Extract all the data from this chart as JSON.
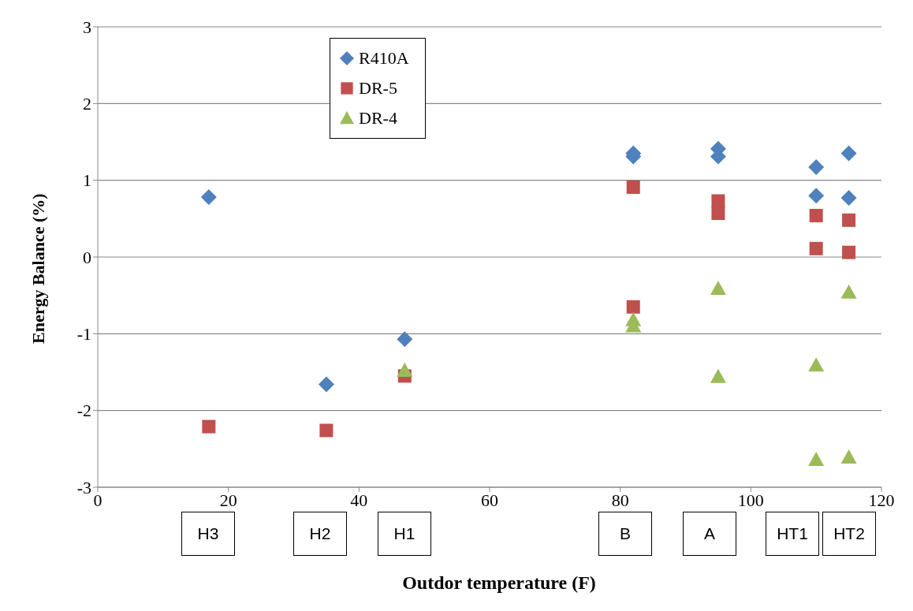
{
  "chart_data": {
    "type": "scatter",
    "xlabel": "Outdor temperature (F)",
    "ylabel": "Energy Balance (%)",
    "xlim": [
      0,
      120
    ],
    "xticks": [
      0,
      20,
      40,
      60,
      80,
      100,
      120
    ],
    "ylim": [
      -3,
      3
    ],
    "yticks": [
      -3,
      -2,
      -1,
      0,
      1,
      2,
      3
    ],
    "grid": "y",
    "legend": "top left",
    "series": [
      {
        "name": "R410A",
        "color": "#4f81bd",
        "marker": "diamond",
        "x": [
          17,
          35,
          47,
          82,
          82,
          95,
          95,
          110,
          110,
          115,
          115
        ],
        "values": [
          0.78,
          -1.66,
          -1.07,
          1.35,
          1.31,
          1.41,
          1.31,
          1.17,
          0.8,
          1.35,
          0.77
        ]
      },
      {
        "name": "DR-5",
        "color": "#c0504d",
        "marker": "square",
        "x": [
          17,
          35,
          47,
          82,
          82,
          95,
          95,
          110,
          110,
          115,
          115
        ],
        "values": [
          -2.21,
          -2.26,
          -1.55,
          0.91,
          -0.65,
          0.73,
          0.57,
          0.54,
          0.11,
          0.48,
          0.06
        ]
      },
      {
        "name": "DR-4",
        "color": "#9bbb59",
        "marker": "triangle",
        "x": [
          47,
          82,
          82,
          95,
          95,
          110,
          110,
          115,
          115
        ],
        "values": [
          -1.48,
          -0.82,
          -0.9,
          -0.41,
          -1.56,
          -1.41,
          -2.64,
          -0.46,
          -2.61
        ]
      }
    ],
    "annotations": [
      "H3",
      "H2",
      "H1",
      "B",
      "A",
      "HT1",
      "HT2"
    ]
  }
}
